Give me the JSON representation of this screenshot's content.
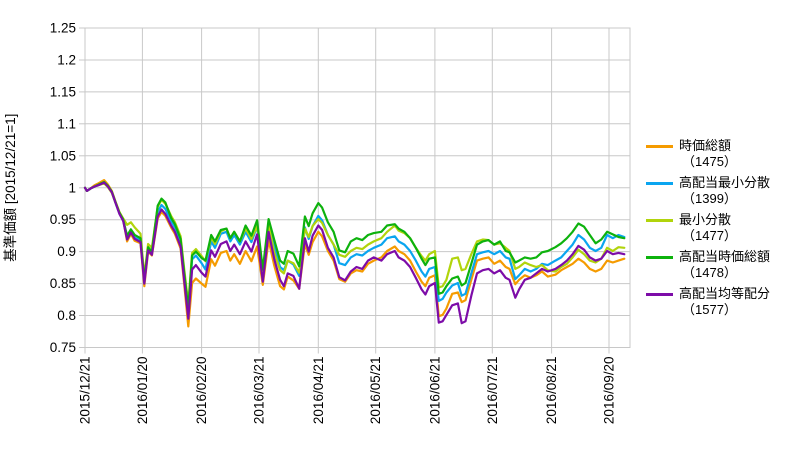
{
  "chart_data": {
    "type": "line",
    "title": "",
    "xlabel": "",
    "ylabel": "基準価額 [2015/12/21=1]",
    "ylim": [
      0.75,
      1.25
    ],
    "grid": true,
    "legend_position": "right",
    "y_ticks": [
      {
        "label": "0.75",
        "value": 0.75
      },
      {
        "label": "0.8",
        "value": 0.8
      },
      {
        "label": "0.85",
        "value": 0.85
      },
      {
        "label": "0.9",
        "value": 0.9
      },
      {
        "label": "0.95",
        "value": 0.95
      },
      {
        "label": "1",
        "value": 1.0
      },
      {
        "label": "1.05",
        "value": 1.05
      },
      {
        "label": "1.1",
        "value": 1.1
      },
      {
        "label": "1.15",
        "value": 1.15
      },
      {
        "label": "1.2",
        "value": 1.2
      },
      {
        "label": "1.25",
        "value": 1.25
      }
    ],
    "x_ticks": [
      {
        "label": "2015/12/21",
        "day": 0
      },
      {
        "label": "2016/01/20",
        "day": 30
      },
      {
        "label": "2016/02/20",
        "day": 61
      },
      {
        "label": "2016/03/21",
        "day": 91
      },
      {
        "label": "2016/04/21",
        "day": 122
      },
      {
        "label": "2016/05/21",
        "day": 152
      },
      {
        "label": "2016/06/21",
        "day": 183
      },
      {
        "label": "2016/07/21",
        "day": 213
      },
      {
        "label": "2016/08/21",
        "day": 244
      },
      {
        "label": "2016/09/20",
        "day": 274
      }
    ],
    "x_span_days": 285,
    "days": [
      0,
      1,
      3,
      5,
      7,
      10,
      12,
      14,
      16,
      18,
      20,
      22,
      24,
      26,
      29,
      31,
      33,
      35,
      38,
      40,
      42,
      45,
      47,
      50,
      52,
      54,
      56,
      58,
      61,
      63,
      66,
      68,
      71,
      74,
      76,
      78,
      81,
      84,
      87,
      90,
      93,
      96,
      99,
      102,
      104,
      106,
      109,
      112,
      115,
      117,
      119,
      122,
      124,
      127,
      130,
      133,
      136,
      139,
      142,
      145,
      148,
      151,
      155,
      158,
      162,
      164,
      167,
      170,
      173,
      176,
      178,
      180,
      183,
      185,
      187,
      189,
      192,
      195,
      197,
      199,
      202,
      205,
      208,
      211,
      214,
      217,
      220,
      222,
      225,
      227,
      230,
      233,
      236,
      239,
      242,
      246,
      249,
      252,
      255,
      258,
      261,
      264,
      267,
      270,
      273,
      276,
      279,
      282
    ],
    "series": [
      {
        "name": "時価総額",
        "code_label": "（1475）",
        "color": "#F59B00",
        "values": [
          1.0,
          0.995,
          0.999,
          1.004,
          1.007,
          1.012,
          1.005,
          0.995,
          0.978,
          0.962,
          0.95,
          0.916,
          0.928,
          0.917,
          0.913,
          0.846,
          0.9,
          0.894,
          0.952,
          0.962,
          0.956,
          0.938,
          0.928,
          0.905,
          0.846,
          0.783,
          0.851,
          0.858,
          0.85,
          0.845,
          0.888,
          0.878,
          0.898,
          0.901,
          0.886,
          0.896,
          0.881,
          0.901,
          0.885,
          0.908,
          0.848,
          0.918,
          0.878,
          0.846,
          0.841,
          0.861,
          0.855,
          0.842,
          0.912,
          0.895,
          0.915,
          0.931,
          0.924,
          0.901,
          0.886,
          0.857,
          0.853,
          0.866,
          0.871,
          0.869,
          0.881,
          0.886,
          0.891,
          0.901,
          0.908,
          0.901,
          0.896,
          0.886,
          0.869,
          0.853,
          0.846,
          0.859,
          0.863,
          0.799,
          0.801,
          0.811,
          0.834,
          0.836,
          0.821,
          0.824,
          0.856,
          0.886,
          0.889,
          0.891,
          0.881,
          0.886,
          0.876,
          0.873,
          0.849,
          0.856,
          0.863,
          0.859,
          0.863,
          0.869,
          0.861,
          0.864,
          0.871,
          0.876,
          0.881,
          0.889,
          0.883,
          0.873,
          0.869,
          0.873,
          0.886,
          0.883,
          0.886,
          0.889
        ]
      },
      {
        "name": "高配当最小分散",
        "code_label": "（1399）",
        "color": "#0AA5F0",
        "values": [
          1.0,
          0.995,
          0.999,
          1.002,
          1.004,
          1.008,
          1.002,
          0.993,
          0.976,
          0.96,
          0.949,
          0.921,
          0.932,
          0.922,
          0.918,
          0.852,
          0.905,
          0.898,
          0.962,
          0.973,
          0.967,
          0.948,
          0.938,
          0.915,
          0.86,
          0.805,
          0.888,
          0.894,
          0.882,
          0.872,
          0.916,
          0.906,
          0.928,
          0.931,
          0.916,
          0.926,
          0.911,
          0.931,
          0.915,
          0.94,
          0.862,
          0.945,
          0.908,
          0.876,
          0.871,
          0.886,
          0.88,
          0.862,
          0.938,
          0.92,
          0.94,
          0.956,
          0.949,
          0.926,
          0.911,
          0.882,
          0.879,
          0.891,
          0.896,
          0.894,
          0.901,
          0.906,
          0.911,
          0.921,
          0.924,
          0.916,
          0.911,
          0.901,
          0.886,
          0.869,
          0.861,
          0.873,
          0.876,
          0.823,
          0.826,
          0.836,
          0.847,
          0.851,
          0.831,
          0.834,
          0.866,
          0.896,
          0.899,
          0.901,
          0.896,
          0.901,
          0.891,
          0.889,
          0.857,
          0.863,
          0.873,
          0.869,
          0.873,
          0.881,
          0.879,
          0.886,
          0.891,
          0.901,
          0.911,
          0.926,
          0.919,
          0.906,
          0.901,
          0.906,
          0.926,
          0.921,
          0.926,
          0.923
        ]
      },
      {
        "name": "最小分散",
        "code_label": "（1477）",
        "color": "#B1D40C",
        "values": [
          1.0,
          0.995,
          0.999,
          1.002,
          1.004,
          1.007,
          1.001,
          0.992,
          0.976,
          0.962,
          0.952,
          0.942,
          0.946,
          0.938,
          0.928,
          0.862,
          0.912,
          0.906,
          0.97,
          0.981,
          0.975,
          0.956,
          0.946,
          0.924,
          0.87,
          0.818,
          0.898,
          0.904,
          0.893,
          0.885,
          0.922,
          0.912,
          0.932,
          0.936,
          0.921,
          0.931,
          0.916,
          0.936,
          0.92,
          0.94,
          0.868,
          0.942,
          0.898,
          0.871,
          0.866,
          0.886,
          0.882,
          0.867,
          0.936,
          0.923,
          0.94,
          0.951,
          0.945,
          0.926,
          0.911,
          0.895,
          0.892,
          0.901,
          0.906,
          0.904,
          0.911,
          0.916,
          0.921,
          0.931,
          0.941,
          0.933,
          0.929,
          0.921,
          0.906,
          0.893,
          0.886,
          0.896,
          0.901,
          0.844,
          0.846,
          0.856,
          0.889,
          0.891,
          0.871,
          0.873,
          0.896,
          0.916,
          0.919,
          0.918,
          0.911,
          0.913,
          0.906,
          0.901,
          0.873,
          0.876,
          0.883,
          0.879,
          0.876,
          0.879,
          0.871,
          0.869,
          0.876,
          0.881,
          0.891,
          0.903,
          0.896,
          0.886,
          0.883,
          0.889,
          0.906,
          0.901,
          0.907,
          0.906
        ]
      },
      {
        "name": "高配当時価総額",
        "code_label": "（1478）",
        "color": "#0DB20D",
        "values": [
          1.0,
          0.995,
          0.999,
          1.002,
          1.005,
          1.009,
          1.003,
          0.994,
          0.977,
          0.961,
          0.95,
          0.925,
          0.935,
          0.926,
          0.921,
          0.856,
          0.907,
          0.9,
          0.972,
          0.983,
          0.977,
          0.953,
          0.943,
          0.92,
          0.864,
          0.811,
          0.894,
          0.9,
          0.89,
          0.886,
          0.926,
          0.916,
          0.934,
          0.936,
          0.921,
          0.931,
          0.916,
          0.941,
          0.925,
          0.949,
          0.872,
          0.951,
          0.918,
          0.886,
          0.881,
          0.901,
          0.897,
          0.877,
          0.955,
          0.94,
          0.96,
          0.976,
          0.969,
          0.946,
          0.931,
          0.902,
          0.899,
          0.916,
          0.921,
          0.918,
          0.926,
          0.929,
          0.931,
          0.941,
          0.943,
          0.936,
          0.931,
          0.921,
          0.906,
          0.889,
          0.879,
          0.889,
          0.891,
          0.834,
          0.836,
          0.846,
          0.858,
          0.861,
          0.847,
          0.851,
          0.881,
          0.911,
          0.916,
          0.918,
          0.911,
          0.916,
          0.901,
          0.899,
          0.883,
          0.886,
          0.891,
          0.889,
          0.891,
          0.899,
          0.901,
          0.907,
          0.913,
          0.921,
          0.931,
          0.944,
          0.939,
          0.926,
          0.913,
          0.919,
          0.931,
          0.927,
          0.923,
          0.921
        ]
      },
      {
        "name": "高配当均等配分",
        "code_label": "（1577）",
        "color": "#7D0CA8",
        "values": [
          1.0,
          0.995,
          0.999,
          1.002,
          1.004,
          1.008,
          1.002,
          0.993,
          0.976,
          0.959,
          0.948,
          0.919,
          0.93,
          0.92,
          0.915,
          0.85,
          0.902,
          0.895,
          0.955,
          0.966,
          0.959,
          0.941,
          0.931,
          0.908,
          0.852,
          0.795,
          0.872,
          0.879,
          0.867,
          0.861,
          0.902,
          0.892,
          0.912,
          0.916,
          0.901,
          0.911,
          0.896,
          0.916,
          0.9,
          0.927,
          0.853,
          0.931,
          0.888,
          0.856,
          0.846,
          0.866,
          0.862,
          0.842,
          0.921,
          0.9,
          0.925,
          0.941,
          0.934,
          0.906,
          0.891,
          0.86,
          0.855,
          0.869,
          0.876,
          0.873,
          0.886,
          0.891,
          0.886,
          0.896,
          0.901,
          0.891,
          0.886,
          0.876,
          0.859,
          0.841,
          0.833,
          0.846,
          0.851,
          0.789,
          0.791,
          0.801,
          0.816,
          0.819,
          0.788,
          0.791,
          0.831,
          0.866,
          0.871,
          0.873,
          0.866,
          0.871,
          0.859,
          0.856,
          0.828,
          0.841,
          0.856,
          0.859,
          0.866,
          0.873,
          0.869,
          0.873,
          0.879,
          0.886,
          0.896,
          0.909,
          0.903,
          0.891,
          0.886,
          0.889,
          0.901,
          0.896,
          0.898,
          0.896
        ]
      }
    ]
  }
}
